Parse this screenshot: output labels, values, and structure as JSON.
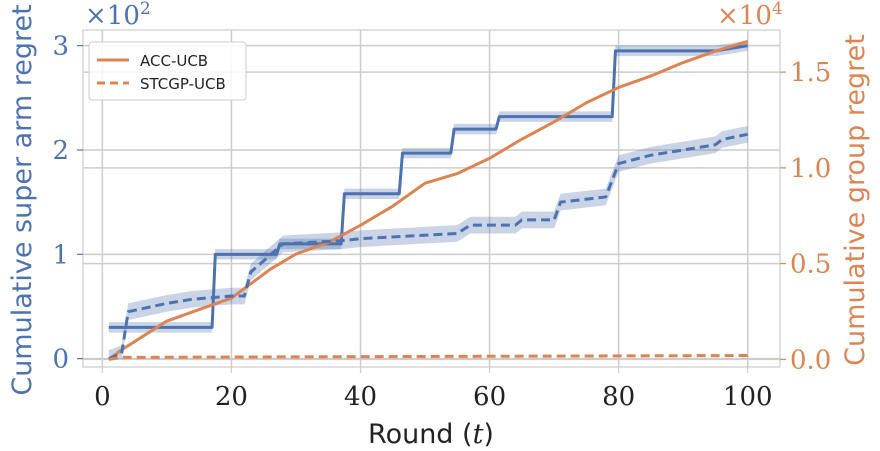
{
  "chart_data": {
    "type": "line",
    "xlabel": "Round ($t$)",
    "x_ticks": [
      "0",
      "20",
      "40",
      "60",
      "80",
      "100"
    ],
    "xlim": [
      -3,
      105
    ],
    "grid": true,
    "legend_position": "top-left",
    "left_axis": {
      "label": "Cumulative super arm regret",
      "multiplier": "×10",
      "multiplier_exp": "2",
      "ylim": [
        -0.08,
        3.15
      ],
      "ticks": [
        "0",
        "1",
        "2",
        "3"
      ],
      "tick_values": [
        0,
        1,
        2,
        3
      ],
      "color": "#4c72b0"
    },
    "right_axis": {
      "label": "Cumulative group regret",
      "multiplier": "×10",
      "multiplier_exp": "4",
      "ylim": [
        -0.04,
        1.72
      ],
      "ticks": [
        "0.0",
        "0.5",
        "1.0",
        "1.5"
      ],
      "tick_values": [
        0.0,
        0.5,
        1.0,
        1.5
      ],
      "color": "#dd8452"
    },
    "series": [
      {
        "name": "ACC-UCB",
        "style": "solid",
        "axis": "left",
        "color": "#4c72b0",
        "x": [
          1,
          17,
          17.5,
          27,
          27.5,
          37,
          37.5,
          46,
          46.5,
          54,
          54.5,
          61,
          61.5,
          79,
          79.5,
          95,
          100
        ],
        "y": [
          0.3,
          0.3,
          1.0,
          1.0,
          1.1,
          1.1,
          1.58,
          1.58,
          1.97,
          1.97,
          2.2,
          2.2,
          2.32,
          2.32,
          2.95,
          2.95,
          3.0
        ],
        "band": 0.05
      },
      {
        "name": "ACC-UCB",
        "style": "solid",
        "axis": "right",
        "color": "#dd8452",
        "x": [
          1,
          3,
          10,
          20,
          26,
          30,
          35,
          40,
          45,
          50,
          55,
          60,
          65,
          70,
          75,
          80,
          85,
          90,
          95,
          100
        ],
        "y": [
          0.0,
          0.05,
          0.2,
          0.32,
          0.47,
          0.55,
          0.61,
          0.7,
          0.8,
          0.92,
          0.97,
          1.05,
          1.15,
          1.24,
          1.34,
          1.42,
          1.48,
          1.55,
          1.61,
          1.66
        ]
      },
      {
        "name": "STCGP-UCB",
        "style": "dashed",
        "axis": "left",
        "color": "#4c72b0",
        "x": [
          1,
          3,
          4,
          10,
          14,
          20,
          22,
          23,
          28,
          37,
          40,
          55,
          57,
          64,
          65,
          66,
          70,
          71,
          78,
          80,
          85,
          95,
          96,
          100
        ],
        "y": [
          0.0,
          0.05,
          0.45,
          0.53,
          0.57,
          0.6,
          0.6,
          0.83,
          1.1,
          1.13,
          1.15,
          1.2,
          1.28,
          1.28,
          1.33,
          1.33,
          1.33,
          1.5,
          1.55,
          1.87,
          1.95,
          2.05,
          2.1,
          2.15
        ],
        "band": 0.08
      },
      {
        "name": "STCGP-UCB",
        "style": "dashed",
        "axis": "right",
        "color": "#dd8452",
        "x": [
          1,
          3,
          20,
          40,
          60,
          80,
          100
        ],
        "y": [
          0.0,
          0.01,
          0.012,
          0.014,
          0.016,
          0.018,
          0.02
        ]
      }
    ],
    "legend": [
      {
        "label": "ACC-UCB",
        "style": "solid",
        "color": "#dd8452"
      },
      {
        "label": "STCGP-UCB",
        "style": "dashed",
        "color": "#dd8452"
      }
    ]
  }
}
